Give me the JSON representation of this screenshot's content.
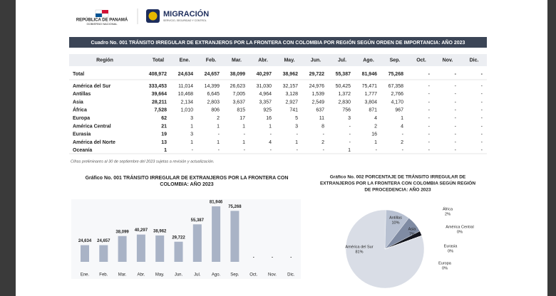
{
  "header": {
    "republic": "REPÚBLICA DE PANAMÁ",
    "government": "GOBIERNO NACIONAL",
    "brand": "MIGRACIÓN",
    "brand_sub": "SERVICIO, SEGURIDAD Y CONTROL"
  },
  "table": {
    "title": "Cuadro No. 001  TRÁNSITO IRREGULAR DE EXTRANJEROS POR LA FRONTERA CON COLOMBIA POR REGIÓN SEGÚN ORDEN DE IMPORTANCIA: AÑO 2023",
    "columns": [
      "Región",
      "Total",
      "Ene.",
      "Feb.",
      "Mar.",
      "Abr.",
      "May.",
      "Jun.",
      "Jul.",
      "Ago.",
      "Sep.",
      "Oct.",
      "Nov.",
      "Dic."
    ],
    "rows": [
      [
        "Total",
        "408,972",
        "24,634",
        "24,657",
        "38,099",
        "40,297",
        "38,962",
        "29,722",
        "55,387",
        "81,946",
        "75,268",
        "-",
        "-",
        "-"
      ],
      [
        "América del Sur",
        "333,453",
        "11,014",
        "14,399",
        "26,623",
        "31,030",
        "32,157",
        "24,976",
        "50,425",
        "75,471",
        "67,358",
        "-",
        "-",
        "-"
      ],
      [
        "Antillas",
        "39,664",
        "10,468",
        "6,645",
        "7,005",
        "4,964",
        "3,128",
        "1,539",
        "1,372",
        "1,777",
        "2,766",
        "-",
        "-",
        "-"
      ],
      [
        "Asia",
        "28,211",
        "2,134",
        "2,803",
        "3,637",
        "3,357",
        "2,927",
        "2,549",
        "2,830",
        "3,804",
        "4,170",
        "-",
        "-",
        "-"
      ],
      [
        "África",
        "7,528",
        "1,010",
        "806",
        "815",
        "925",
        "741",
        "637",
        "756",
        "871",
        "967",
        "-",
        "-",
        "-"
      ],
      [
        "Europa",
        "62",
        "3",
        "2",
        "17",
        "16",
        "5",
        "11",
        "3",
        "4",
        "1",
        "-",
        "-",
        "-"
      ],
      [
        "América Central",
        "21",
        "1",
        "1",
        "1",
        "1",
        "3",
        "8",
        "-",
        "2",
        "4",
        "-",
        "-",
        "-"
      ],
      [
        "Eurasia",
        "19",
        "3",
        "-",
        "-",
        "-",
        "-",
        "-",
        "-",
        "16",
        "-",
        "-",
        "-",
        "-"
      ],
      [
        "América del Norte",
        "13",
        "1",
        "1",
        "1",
        "4",
        "1",
        "2",
        "-",
        "1",
        "2",
        "-",
        "-",
        "-"
      ],
      [
        "Oceanía",
        "1",
        "-",
        "-",
        "-",
        "-",
        "-",
        "-",
        "1",
        "-",
        "-",
        "-",
        "-",
        "-"
      ]
    ]
  },
  "note": "Cifras preliminares al 30 de septiembre del 2023 sujetas a revisión y actualización.",
  "chart_data": [
    {
      "type": "bar",
      "title_lines": [
        "Gráfico No. 001  TRÁNSITO IRREGULAR DE EXTRANJEROS POR LA FRONTERA CON",
        "COLOMBIA: AÑO 2023"
      ],
      "categories": [
        "Ene.",
        "Feb.",
        "Mar.",
        "Abr.",
        "May.",
        "Jun.",
        "Jul.",
        "Ago.",
        "Sep.",
        "Oct.",
        "Nov.",
        "Dic."
      ],
      "values": [
        24634,
        24657,
        38099,
        40297,
        38962,
        29722,
        55387,
        81946,
        75268,
        null,
        null,
        null
      ],
      "value_labels": [
        "24,634",
        "24,657",
        "38,099",
        "40,297",
        "38,962",
        "29,722",
        "55,387",
        "81,946",
        "75,268",
        "-",
        "-",
        "-"
      ],
      "color": "#a9b3c6"
    },
    {
      "type": "pie",
      "title_lines": [
        "Gráfico No. 002  PORCENTAJE DE TRÁNSITO IRREGULAR DE",
        "EXTRANJEROS POR LA FRONTERA CON COLOMBIA SEGÚN REGIÓN",
        "DE PROCEDENCIA: AÑO 2023"
      ],
      "categories": [
        "América del Sur",
        "Antillas",
        "Asia",
        "África",
        "América Central",
        "Eurasia",
        "Europa"
      ],
      "values": [
        81,
        10,
        7,
        2,
        0,
        0,
        0
      ],
      "value_labels": [
        "81%",
        "10%",
        "7%",
        "2%",
        "0%",
        "0%",
        "0%"
      ],
      "colors": [
        "#d9dde6",
        "#b7c0d1",
        "#7f8ba3",
        "#14161f",
        "#3b4660",
        "#5a6680",
        "#9aa4b8"
      ]
    }
  ]
}
